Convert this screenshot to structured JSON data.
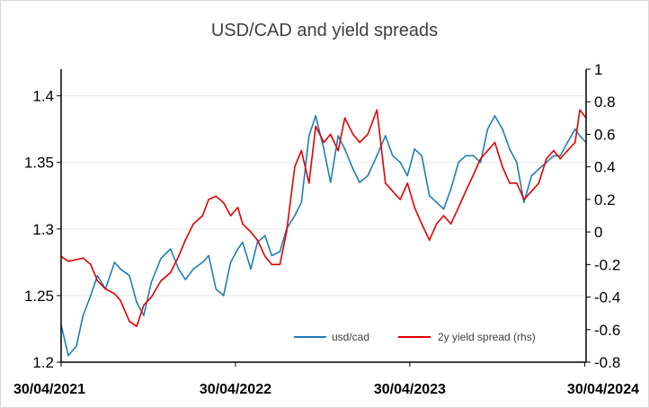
{
  "chart_data": {
    "type": "line",
    "title": "USD/CAD and yield spreads",
    "xlabel": "",
    "ylabel_left": "",
    "ylabel_right": "",
    "x_range": [
      "2021-04-30",
      "2024-05-03"
    ],
    "x_ticks": [
      "30/04/2021",
      "30/04/2022",
      "30/04/2023",
      "30/04/2024"
    ],
    "y_left": {
      "range": [
        1.2,
        1.42
      ],
      "ticks": [
        "1.2",
        "1.25",
        "1.3",
        "1.35",
        "1.4"
      ]
    },
    "y_right": {
      "range": [
        -0.8,
        1
      ],
      "ticks": [
        "-0.8",
        "-0.6",
        "-0.4",
        "-0.2",
        "0",
        "0.2",
        "0.4",
        "0.6",
        "0.8",
        "1"
      ]
    },
    "grid": true,
    "legend_position": "bottom-right",
    "colors": {
      "usdcad": "#1f7fb4",
      "spread": "#e00000"
    },
    "series": [
      {
        "name": "usd/cad",
        "axis": "left",
        "x": [
          "2021-04-30",
          "2021-05-15",
          "2021-06-01",
          "2021-06-15",
          "2021-07-01",
          "2021-07-15",
          "2021-08-01",
          "2021-08-20",
          "2021-09-01",
          "2021-09-20",
          "2021-10-05",
          "2021-10-20",
          "2021-11-05",
          "2021-11-25",
          "2021-12-15",
          "2022-01-01",
          "2022-01-15",
          "2022-02-01",
          "2022-02-20",
          "2022-03-05",
          "2022-03-20",
          "2022-04-05",
          "2022-04-20",
          "2022-05-05",
          "2022-05-15",
          "2022-06-01",
          "2022-06-15",
          "2022-07-01",
          "2022-07-15",
          "2022-08-01",
          "2022-08-15",
          "2022-09-01",
          "2022-09-15",
          "2022-10-01",
          "2022-10-15",
          "2022-11-01",
          "2022-11-15",
          "2022-12-01",
          "2022-12-15",
          "2023-01-01",
          "2023-01-15",
          "2023-02-01",
          "2023-02-20",
          "2023-03-10",
          "2023-03-25",
          "2023-04-10",
          "2023-04-25",
          "2023-05-10",
          "2023-05-25",
          "2023-06-10",
          "2023-06-25",
          "2023-07-10",
          "2023-07-25",
          "2023-08-10",
          "2023-08-25",
          "2023-09-10",
          "2023-09-25",
          "2023-10-10",
          "2023-10-25",
          "2023-11-10",
          "2023-11-25",
          "2023-12-10",
          "2023-12-25",
          "2024-01-10",
          "2024-01-25",
          "2024-02-10",
          "2024-02-25",
          "2024-03-10",
          "2024-03-25",
          "2024-04-10",
          "2024-04-20",
          "2024-05-03"
        ],
        "values": [
          1.228,
          1.205,
          1.212,
          1.235,
          1.25,
          1.265,
          1.255,
          1.275,
          1.27,
          1.265,
          1.245,
          1.235,
          1.26,
          1.278,
          1.285,
          1.27,
          1.262,
          1.27,
          1.275,
          1.28,
          1.255,
          1.25,
          1.275,
          1.285,
          1.29,
          1.27,
          1.29,
          1.295,
          1.28,
          1.283,
          1.3,
          1.31,
          1.32,
          1.37,
          1.385,
          1.36,
          1.335,
          1.37,
          1.36,
          1.345,
          1.335,
          1.34,
          1.355,
          1.37,
          1.355,
          1.35,
          1.34,
          1.36,
          1.355,
          1.325,
          1.32,
          1.315,
          1.33,
          1.35,
          1.355,
          1.355,
          1.35,
          1.375,
          1.385,
          1.375,
          1.36,
          1.35,
          1.32,
          1.34,
          1.345,
          1.35,
          1.355,
          1.355,
          1.365,
          1.375,
          1.37,
          1.365
        ]
      },
      {
        "name": "2y yield spread (rhs)",
        "axis": "right",
        "x": [
          "2021-04-30",
          "2021-05-15",
          "2021-06-01",
          "2021-06-15",
          "2021-07-01",
          "2021-07-15",
          "2021-08-01",
          "2021-08-20",
          "2021-09-01",
          "2021-09-20",
          "2021-10-05",
          "2021-10-20",
          "2021-11-05",
          "2021-11-25",
          "2021-12-15",
          "2022-01-01",
          "2022-01-15",
          "2022-02-01",
          "2022-02-20",
          "2022-03-05",
          "2022-03-20",
          "2022-04-05",
          "2022-04-20",
          "2022-05-05",
          "2022-05-15",
          "2022-06-01",
          "2022-06-15",
          "2022-07-01",
          "2022-07-15",
          "2022-08-01",
          "2022-08-15",
          "2022-09-01",
          "2022-09-15",
          "2022-10-01",
          "2022-10-15",
          "2022-11-01",
          "2022-11-15",
          "2022-12-01",
          "2022-12-15",
          "2023-01-01",
          "2023-01-15",
          "2023-02-01",
          "2023-02-20",
          "2023-03-10",
          "2023-03-25",
          "2023-04-10",
          "2023-04-25",
          "2023-05-10",
          "2023-05-25",
          "2023-06-10",
          "2023-06-25",
          "2023-07-10",
          "2023-07-25",
          "2023-08-10",
          "2023-08-25",
          "2023-09-10",
          "2023-09-25",
          "2023-10-10",
          "2023-10-25",
          "2023-11-10",
          "2023-11-25",
          "2023-12-10",
          "2023-12-25",
          "2024-01-10",
          "2024-01-25",
          "2024-02-10",
          "2024-02-25",
          "2024-03-10",
          "2024-03-25",
          "2024-04-10",
          "2024-04-20",
          "2024-05-03"
        ],
        "values": [
          -0.15,
          -0.18,
          -0.17,
          -0.16,
          -0.2,
          -0.3,
          -0.35,
          -0.38,
          -0.42,
          -0.55,
          -0.58,
          -0.45,
          -0.4,
          -0.3,
          -0.25,
          -0.15,
          -0.05,
          0.05,
          0.1,
          0.2,
          0.22,
          0.18,
          0.1,
          0.15,
          0.05,
          0.0,
          -0.05,
          -0.15,
          -0.2,
          -0.2,
          0.0,
          0.4,
          0.5,
          0.3,
          0.65,
          0.55,
          0.6,
          0.5,
          0.7,
          0.6,
          0.55,
          0.6,
          0.75,
          0.3,
          0.25,
          0.2,
          0.3,
          0.15,
          0.05,
          -0.05,
          0.05,
          0.1,
          0.05,
          0.15,
          0.25,
          0.35,
          0.45,
          0.5,
          0.55,
          0.4,
          0.3,
          0.3,
          0.2,
          0.25,
          0.3,
          0.45,
          0.5,
          0.45,
          0.5,
          0.55,
          0.75,
          0.7
        ]
      }
    ]
  }
}
